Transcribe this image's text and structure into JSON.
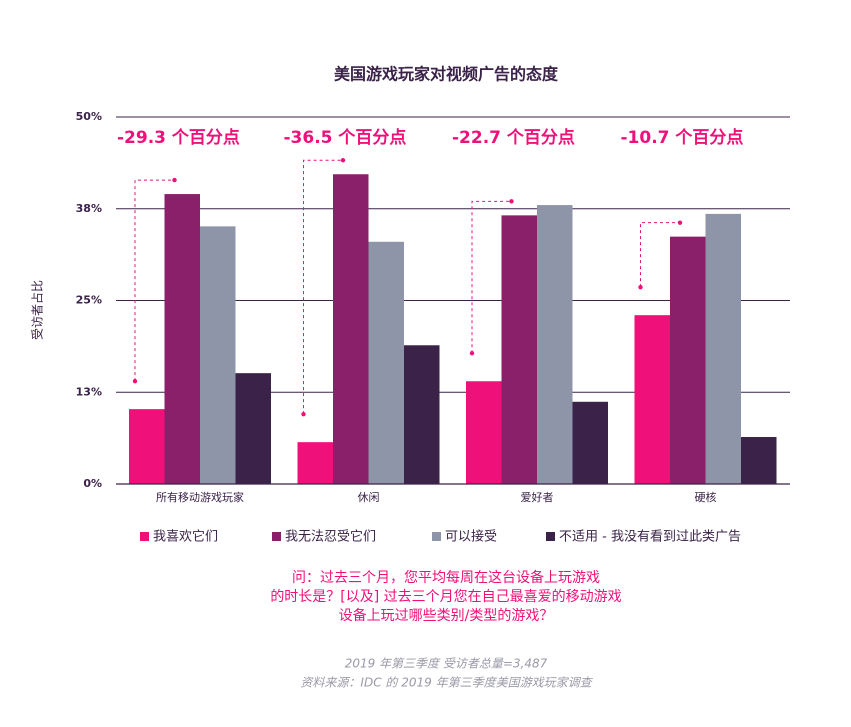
{
  "chart_data": {
    "type": "bar",
    "title": "美国游戏玩家对视频广告的态度",
    "y_label": "受访者占比",
    "categories": [
      "所有移动游戏玩家",
      "休闲",
      "爱好者",
      "硬核"
    ],
    "series": [
      {
        "name": "我喜欢它们",
        "color": "#f0107a",
        "values": [
          10.2,
          5.7,
          14.0,
          23.0
        ]
      },
      {
        "name": "我无法忍受它们",
        "color": "#8a1f6a",
        "values": [
          39.5,
          42.2,
          36.6,
          33.7
        ]
      },
      {
        "name": "可以接受",
        "color": "#8e95a8",
        "values": [
          35.1,
          33.0,
          38.0,
          36.8
        ]
      },
      {
        "name": "不适用 - 我没有看到过此类广告",
        "color": "#3a2248",
        "values": [
          15.1,
          18.9,
          11.2,
          6.4
        ]
      }
    ],
    "annotations": [
      "-29.3 个百分点",
      "-36.5 个百分点",
      "-22.7 个百分点",
      "-10.7 个百分点"
    ],
    "ylim": [
      0,
      50
    ],
    "yticks": [
      {
        "value": 0,
        "label": "0%"
      },
      {
        "value": 12.5,
        "label": "13%"
      },
      {
        "value": 25,
        "label": "25%"
      },
      {
        "value": 37.5,
        "label": "38%"
      },
      {
        "value": 50,
        "label": "50%"
      }
    ],
    "grid": true,
    "question": [
      "问：过去三个月，您平均每周在这台设备上玩游戏",
      "的时长是？[以及] 过去三个月您在自己最喜爱的移动游戏",
      "设备上玩过哪些类别/类型的游戏？"
    ],
    "source": [
      "2019 年第三季度 受访者总量=3,487",
      "资料来源：IDC 的 2019 年第三季度美国游戏玩家调查"
    ]
  }
}
